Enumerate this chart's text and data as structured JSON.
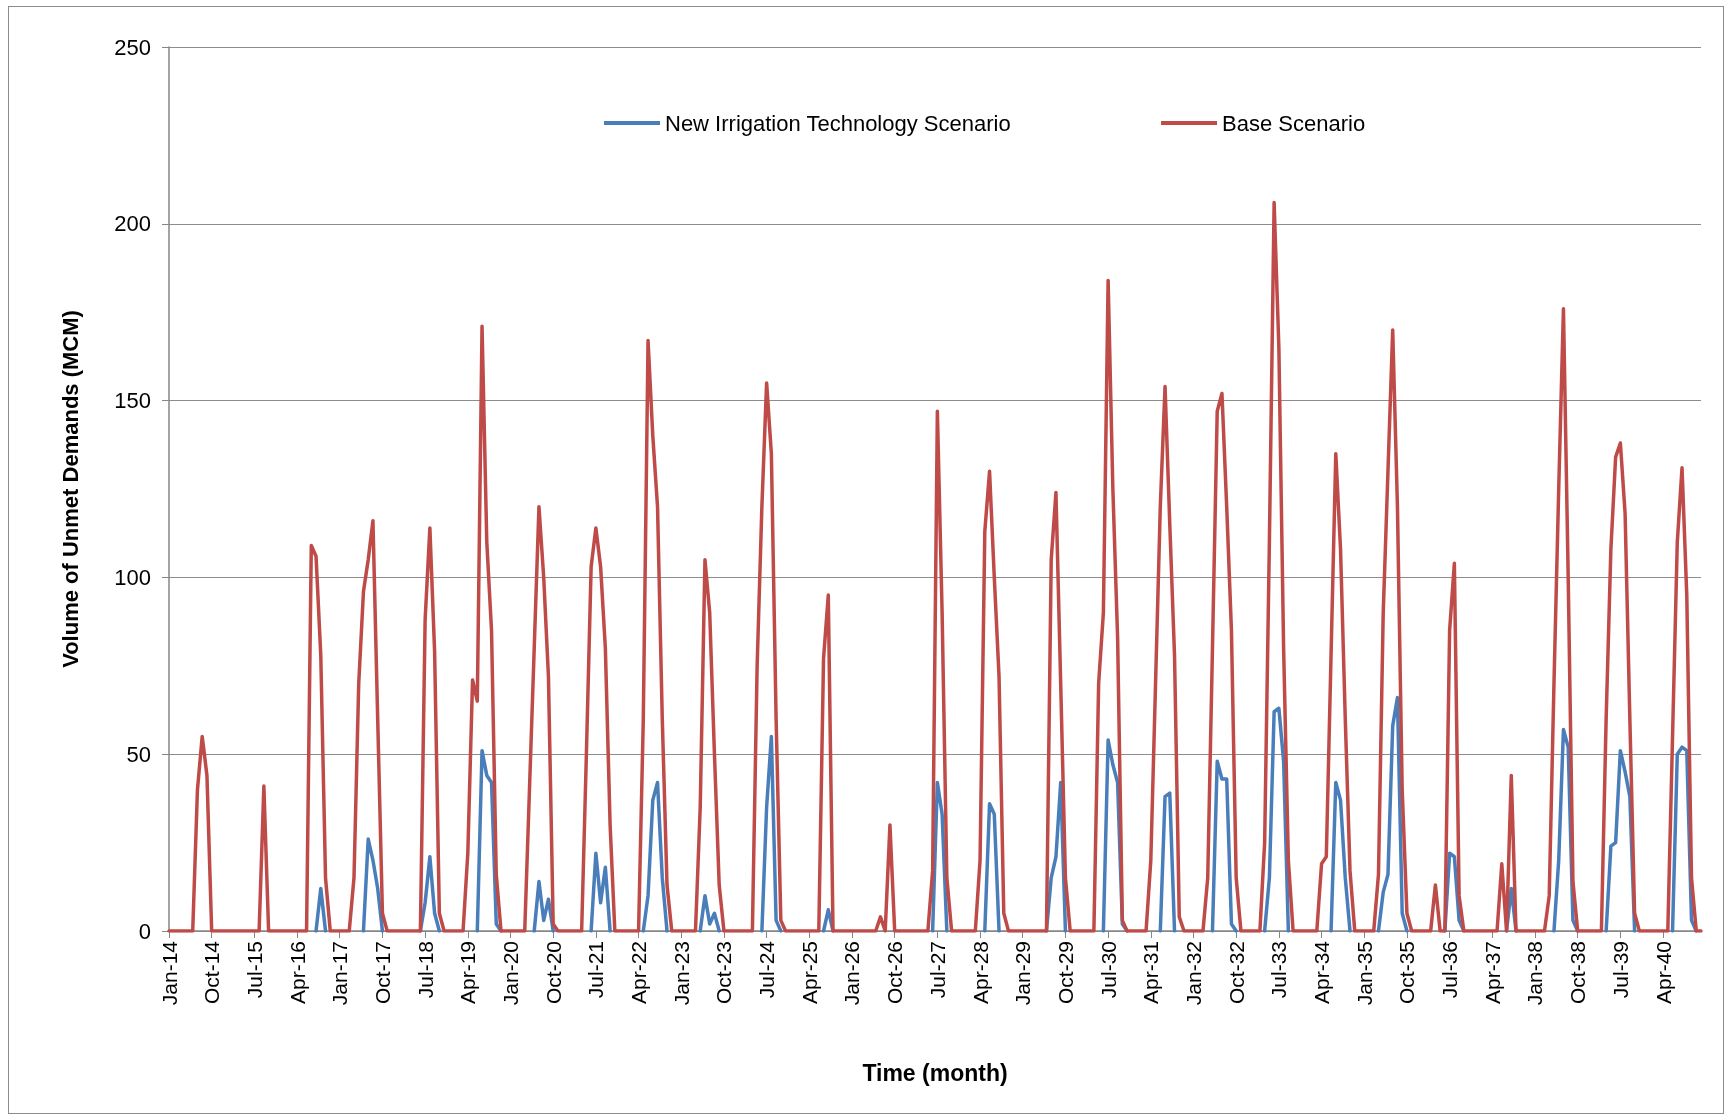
{
  "chart_data": {
    "type": "line",
    "xlabel": "Time (month)",
    "ylabel": "Volume of Unmet Demands (MCM)",
    "categories": [
      "Jan-14",
      null,
      null,
      null,
      null,
      null,
      null,
      null,
      null,
      "Oct-14",
      null,
      null,
      null,
      null,
      null,
      null,
      null,
      null,
      "Jul-15",
      null,
      null,
      null,
      null,
      null,
      null,
      null,
      null,
      "Apr-16",
      null,
      null,
      null,
      null,
      null,
      null,
      null,
      null,
      "Jan-17",
      null,
      null,
      null,
      null,
      null,
      null,
      null,
      null,
      "Oct-17",
      null,
      null,
      null,
      null,
      null,
      null,
      null,
      null,
      "Jul-18",
      null,
      null,
      null,
      null,
      null,
      null,
      null,
      null,
      "Apr-19",
      null,
      null,
      null,
      null,
      null,
      null,
      null,
      null,
      "Jan-20",
      null,
      null,
      null,
      null,
      null,
      null,
      null,
      null,
      "Oct-20",
      null,
      null,
      null,
      null,
      null,
      null,
      null,
      null,
      "Jul-21",
      null,
      null,
      null,
      null,
      null,
      null,
      null,
      null,
      "Apr-22",
      null,
      null,
      null,
      null,
      null,
      null,
      null,
      null,
      "Jan-23",
      null,
      null,
      null,
      null,
      null,
      null,
      null,
      null,
      "Oct-23",
      null,
      null,
      null,
      null,
      null,
      null,
      null,
      null,
      "Jul-24",
      null,
      null,
      null,
      null,
      null,
      null,
      null,
      null,
      "Apr-25",
      null,
      null,
      null,
      null,
      null,
      null,
      null,
      null,
      "Jan-26",
      null,
      null,
      null,
      null,
      null,
      null,
      null,
      null,
      "Oct-26",
      null,
      null,
      null,
      null,
      null,
      null,
      null,
      null,
      "Jul-27",
      null,
      null,
      null,
      null,
      null,
      null,
      null,
      null,
      "Apr-28",
      null,
      null,
      null,
      null,
      null,
      null,
      null,
      null,
      "Jan-29",
      null,
      null,
      null,
      null,
      null,
      null,
      null,
      null,
      "Oct-29",
      null,
      null,
      null,
      null,
      null,
      null,
      null,
      null,
      "Jul-30",
      null,
      null,
      null,
      null,
      null,
      null,
      null,
      null,
      "Apr-31",
      null,
      null,
      null,
      null,
      null,
      null,
      null,
      null,
      "Jan-32",
      null,
      null,
      null,
      null,
      null,
      null,
      null,
      null,
      "Oct-32",
      null,
      null,
      null,
      null,
      null,
      null,
      null,
      null,
      "Jul-33",
      null,
      null,
      null,
      null,
      null,
      null,
      null,
      null,
      "Apr-34",
      null,
      null,
      null,
      null,
      null,
      null,
      null,
      null,
      "Jan-35",
      null,
      null,
      null,
      null,
      null,
      null,
      null,
      null,
      "Oct-35",
      null,
      null,
      null,
      null,
      null,
      null,
      null,
      null,
      "Jul-36",
      null,
      null,
      null,
      null,
      null,
      null,
      null,
      null,
      "Apr-37",
      null,
      null,
      null,
      null,
      null,
      null,
      null,
      null,
      "Jan-38",
      null,
      null,
      null,
      null,
      null,
      null,
      null,
      null,
      "Oct-38",
      null,
      null,
      null,
      null,
      null,
      null,
      null,
      null,
      "Jul-39",
      null,
      null,
      null,
      null,
      null,
      null,
      null,
      null,
      "Apr-40",
      null,
      null,
      null,
      null,
      null,
      null,
      null,
      null
    ],
    "series": [
      {
        "name": "New Irrigation Technology Scenario",
        "color": "#4a7ebb",
        "values": [
          null,
          null,
          null,
          null,
          null,
          null,
          null,
          null,
          null,
          null,
          null,
          null,
          null,
          null,
          null,
          null,
          null,
          null,
          null,
          null,
          null,
          null,
          null,
          null,
          null,
          null,
          null,
          null,
          null,
          null,
          null,
          0,
          12,
          0,
          null,
          null,
          null,
          null,
          null,
          null,
          null,
          0,
          26,
          20,
          12,
          0,
          null,
          null,
          null,
          null,
          null,
          null,
          null,
          0,
          8,
          21,
          5,
          0,
          null,
          null,
          null,
          null,
          null,
          null,
          null,
          0,
          51,
          44,
          42,
          2,
          0,
          null,
          null,
          null,
          null,
          null,
          null,
          0,
          14,
          3,
          9,
          0,
          null,
          null,
          null,
          null,
          null,
          null,
          null,
          0,
          22,
          8,
          18,
          0,
          null,
          null,
          null,
          null,
          null,
          null,
          0,
          10,
          37,
          42,
          15,
          0,
          null,
          null,
          null,
          null,
          null,
          null,
          0,
          10,
          2,
          5,
          0,
          null,
          null,
          null,
          null,
          null,
          null,
          null,
          null,
          0,
          35,
          55,
          3,
          0,
          null,
          null,
          null,
          null,
          null,
          null,
          null,
          null,
          0,
          6,
          0,
          null,
          null,
          null,
          null,
          null,
          null,
          null,
          null,
          null,
          null,
          null,
          null,
          null,
          null,
          null,
          null,
          null,
          null,
          null,
          null,
          0,
          42,
          33,
          0,
          null,
          null,
          null,
          null,
          null,
          null,
          null,
          0,
          36,
          33,
          0,
          null,
          null,
          null,
          null,
          null,
          null,
          null,
          null,
          null,
          0,
          15,
          21,
          42,
          0,
          null,
          null,
          null,
          null,
          null,
          null,
          null,
          0,
          54,
          47,
          42,
          2,
          0,
          null,
          null,
          null,
          null,
          null,
          null,
          0,
          38,
          39,
          0,
          null,
          null,
          null,
          null,
          null,
          null,
          null,
          0,
          48,
          43,
          43,
          2,
          0,
          null,
          null,
          null,
          null,
          null,
          0,
          15,
          62,
          63,
          48,
          0,
          null,
          null,
          null,
          null,
          null,
          null,
          null,
          null,
          0,
          42,
          37,
          15,
          0,
          null,
          null,
          null,
          null,
          null,
          0,
          11,
          16,
          58,
          66,
          5,
          0,
          null,
          null,
          null,
          null,
          null,
          null,
          null,
          0,
          22,
          21,
          3,
          0,
          null,
          null,
          null,
          null,
          null,
          null,
          null,
          null,
          0,
          12,
          0,
          null,
          null,
          null,
          null,
          null,
          null,
          null,
          0,
          20,
          57,
          52,
          3,
          0,
          null,
          null,
          null,
          null,
          null,
          0,
          24,
          25,
          51,
          45,
          38,
          0,
          null,
          null,
          null,
          null,
          null,
          null,
          null,
          0,
          50,
          52,
          51,
          3,
          0,
          null
        ]
      },
      {
        "name": "Base Scenario",
        "color": "#be4b48",
        "values": [
          0,
          0,
          0,
          0,
          0,
          0,
          40,
          55,
          44,
          0,
          0,
          0,
          0,
          0,
          0,
          0,
          0,
          0,
          0,
          0,
          41,
          0,
          0,
          0,
          0,
          0,
          0,
          0,
          0,
          0,
          109,
          106,
          78,
          15,
          0,
          0,
          0,
          0,
          0,
          15,
          70,
          96,
          105,
          116,
          60,
          5,
          0,
          0,
          0,
          0,
          0,
          0,
          0,
          0,
          88,
          114,
          79,
          5,
          0,
          0,
          0,
          0,
          0,
          22,
          71,
          65,
          171,
          110,
          85,
          16,
          0,
          0,
          0,
          0,
          0,
          0,
          40,
          80,
          120,
          100,
          72,
          2,
          0,
          0,
          0,
          0,
          0,
          0,
          50,
          103,
          114,
          103,
          80,
          30,
          0,
          0,
          0,
          0,
          0,
          0,
          60,
          167,
          140,
          120,
          60,
          13,
          0,
          0,
          0,
          0,
          0,
          0,
          35,
          105,
          90,
          50,
          13,
          0,
          0,
          0,
          0,
          0,
          0,
          0,
          75,
          120,
          155,
          135,
          60,
          3,
          0,
          0,
          0,
          0,
          0,
          0,
          0,
          0,
          77,
          95,
          0,
          0,
          0,
          0,
          0,
          0,
          0,
          0,
          0,
          0,
          4,
          0,
          30,
          0,
          0,
          0,
          0,
          0,
          0,
          0,
          0,
          17,
          147,
          90,
          15,
          0,
          0,
          0,
          0,
          0,
          0,
          20,
          113,
          130,
          100,
          72,
          5,
          0,
          0,
          0,
          0,
          0,
          0,
          0,
          0,
          0,
          105,
          124,
          70,
          15,
          0,
          0,
          0,
          0,
          0,
          0,
          70,
          90,
          184,
          125,
          83,
          3,
          0,
          0,
          0,
          0,
          0,
          20,
          70,
          120,
          154,
          115,
          78,
          4,
          0,
          0,
          0,
          0,
          0,
          15,
          80,
          147,
          152,
          120,
          85,
          15,
          0,
          0,
          0,
          0,
          0,
          25,
          110,
          206,
          165,
          80,
          20,
          0,
          0,
          0,
          0,
          0,
          0,
          19,
          21,
          78,
          135,
          108,
          60,
          17,
          0,
          0,
          0,
          0,
          0,
          16,
          90,
          130,
          170,
          120,
          40,
          5,
          0,
          0,
          0,
          0,
          0,
          13,
          0,
          0,
          85,
          104,
          10,
          0,
          0,
          0,
          0,
          0,
          0,
          0,
          0,
          19,
          0,
          44,
          0,
          0,
          0,
          0,
          0,
          0,
          0,
          10,
          70,
          125,
          176,
          100,
          14,
          0,
          0,
          0,
          0,
          0,
          0,
          60,
          108,
          134,
          138,
          118,
          60,
          5,
          0,
          0,
          0,
          0,
          0,
          0,
          0,
          55,
          110,
          131,
          95,
          15,
          0,
          0
        ]
      }
    ],
    "ylim": [
      0,
      250
    ],
    "yticks": [
      0,
      50,
      100,
      150,
      200,
      250
    ],
    "grid": "y",
    "legend": "top",
    "marker": "none",
    "line_style": "solid"
  }
}
